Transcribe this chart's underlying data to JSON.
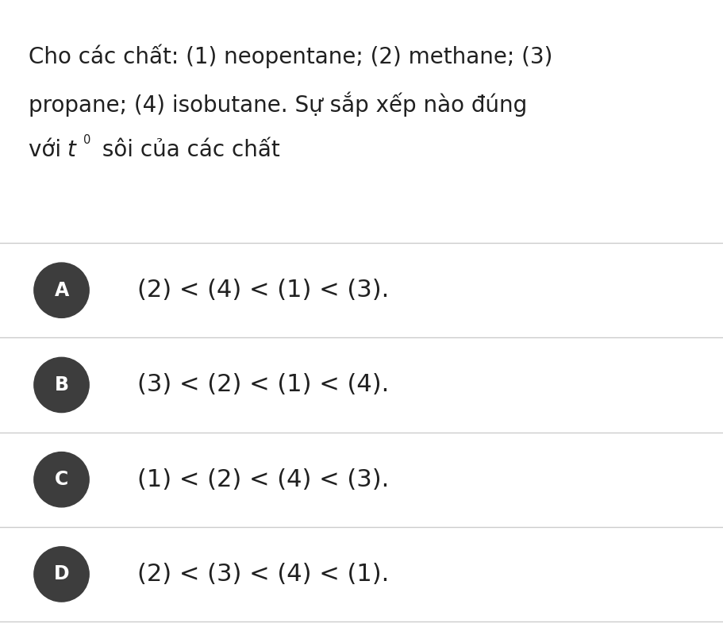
{
  "background_color": "#ffffff",
  "question_text_line1": "Cho các chất: (1) neopentane; (2) methane; (3)",
  "question_text_line2": "propane; (4) isobutane. Sự sắp xếp nào đúng",
  "question_text_line3_part1": "với ",
  "question_text_line3_t": "$t$",
  "question_text_line3_sup": "$^{0}$",
  "question_text_line3_part2": " sôi của các chất",
  "options": [
    {
      "label": "A",
      "text": "(2) < (4) < (1) < (3)."
    },
    {
      "label": "B",
      "text": "(3) < (2) < (1) < (4)."
    },
    {
      "label": "C",
      "text": "(1) < (2) < (4) < (3)."
    },
    {
      "label": "D",
      "text": "(2) < (3) < (4) < (1)."
    }
  ],
  "circle_color": "#3d3d3d",
  "circle_label_color": "#ffffff",
  "text_color": "#202020",
  "line_color": "#cccccc",
  "question_fontsize": 20,
  "option_label_fontsize": 17,
  "option_text_fontsize": 22,
  "figsize": [
    9.12,
    7.95
  ],
  "dpi": 100
}
